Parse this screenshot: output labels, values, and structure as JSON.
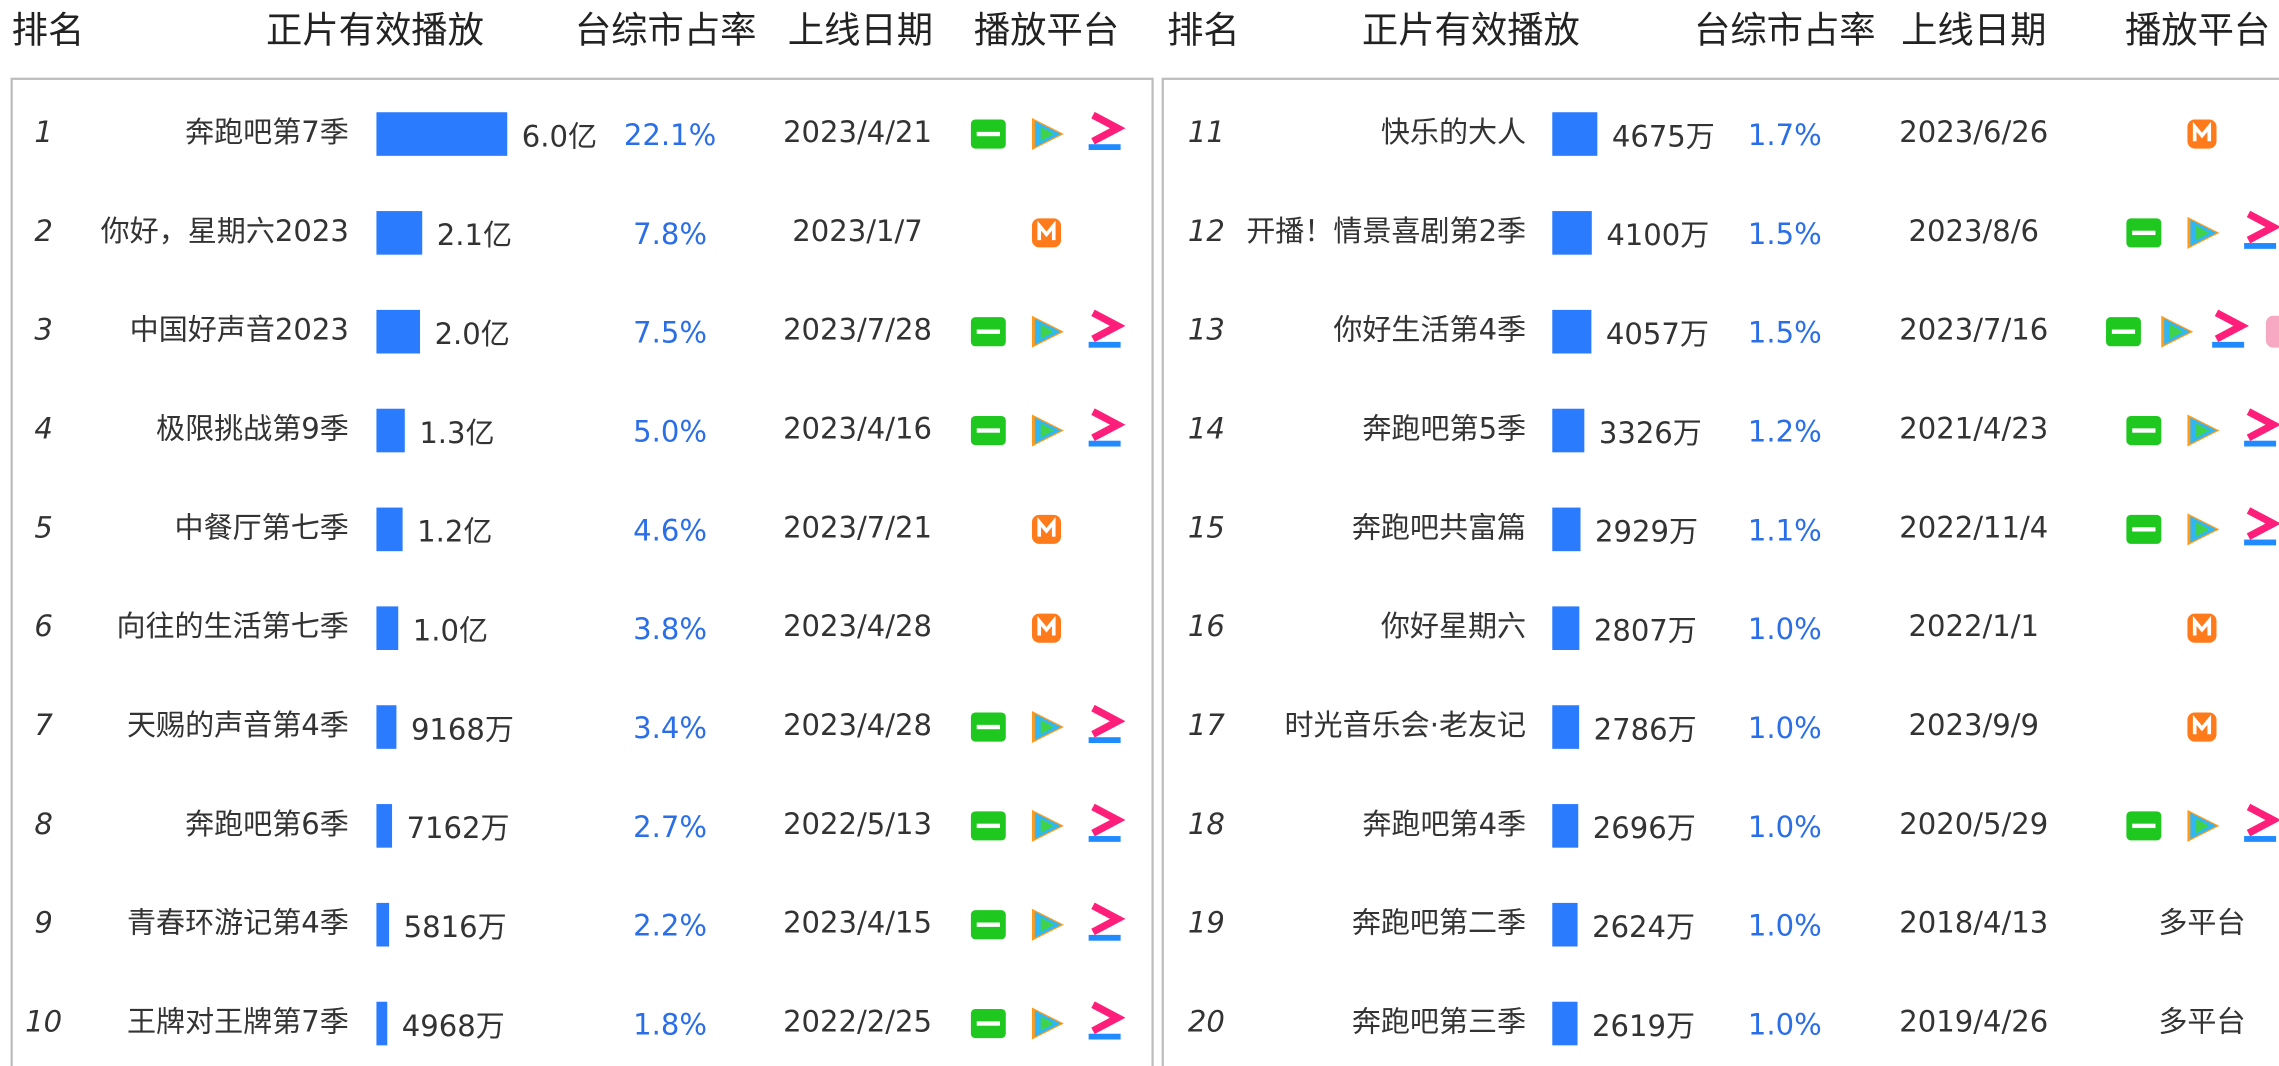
{
  "tables": [
    {
      "header": [
        "排名",
        "正片有效播放",
        "台综市占率",
        "上线日期",
        "播放平台"
      ],
      "rows": [
        {
          "rank": 1,
          "name": "奔跑吧第7季",
          "plays": {
            "value": 60000,
            "label": "6.0亿"
          },
          "share": "22.1%",
          "date": "2023/4/21",
          "platforms": [
            "iqiyi",
            "tencent",
            "youku"
          ]
        },
        {
          "rank": 2,
          "name": "你好，星期六2023",
          "plays": {
            "value": 21000,
            "label": "2.1亿"
          },
          "share": "7.8%",
          "date": "2023/1/7",
          "platforms": [
            "mango"
          ]
        },
        {
          "rank": 3,
          "name": "中国好声音2023",
          "plays": {
            "value": 20000,
            "label": "2.0亿"
          },
          "share": "7.5%",
          "date": "2023/7/28",
          "platforms": [
            "iqiyi",
            "tencent",
            "youku"
          ]
        },
        {
          "rank": 4,
          "name": "极限挑战第9季",
          "plays": {
            "value": 13000,
            "label": "1.3亿"
          },
          "share": "5.0%",
          "date": "2023/4/16",
          "platforms": [
            "iqiyi",
            "tencent",
            "youku"
          ]
        },
        {
          "rank": 5,
          "name": "中餐厅第七季",
          "plays": {
            "value": 12000,
            "label": "1.2亿"
          },
          "share": "4.6%",
          "date": "2023/7/21",
          "platforms": [
            "mango"
          ]
        },
        {
          "rank": 6,
          "name": "向往的生活第七季",
          "plays": {
            "value": 10000,
            "label": "1.0亿"
          },
          "share": "3.8%",
          "date": "2023/4/28",
          "platforms": [
            "mango"
          ]
        },
        {
          "rank": 7,
          "name": "天赐的声音第4季",
          "plays": {
            "value": 9168,
            "label": "9168万"
          },
          "share": "3.4%",
          "date": "2023/4/28",
          "platforms": [
            "iqiyi",
            "tencent",
            "youku"
          ]
        },
        {
          "rank": 8,
          "name": "奔跑吧第6季",
          "plays": {
            "value": 7162,
            "label": "7162万"
          },
          "share": "2.7%",
          "date": "2022/5/13",
          "platforms": [
            "iqiyi",
            "tencent",
            "youku"
          ]
        },
        {
          "rank": 9,
          "name": "青春环游记第4季",
          "plays": {
            "value": 5816,
            "label": "5816万"
          },
          "share": "2.2%",
          "date": "2023/4/15",
          "platforms": [
            "iqiyi",
            "tencent",
            "youku"
          ]
        },
        {
          "rank": 10,
          "name": "王牌对王牌第7季",
          "plays": {
            "value": 4968,
            "label": "4968万"
          },
          "share": "1.8%",
          "date": "2022/2/25",
          "platforms": [
            "iqiyi",
            "tencent",
            "youku"
          ]
        }
      ]
    },
    {
      "header": [
        "排名",
        "正片有效播放",
        "台综市占率",
        "上线日期",
        "播放平台"
      ],
      "rows": [
        {
          "rank": 11,
          "name": "快乐的大人",
          "plays": {
            "value": 4675,
            "label": "4675万"
          },
          "share": "1.7%",
          "date": "2023/6/26",
          "platforms": [
            "mango"
          ]
        },
        {
          "rank": 12,
          "name": "开播！情景喜剧第2季",
          "plays": {
            "value": 4100,
            "label": "4100万"
          },
          "share": "1.5%",
          "date": "2023/8/6",
          "platforms": [
            "iqiyi",
            "tencent",
            "youku"
          ]
        },
        {
          "rank": 13,
          "name": "你好生活第4季",
          "plays": {
            "value": 4057,
            "label": "4057万"
          },
          "share": "1.5%",
          "date": "2023/7/16",
          "platforms": [
            "iqiyi",
            "tencent",
            "youku",
            "other"
          ]
        },
        {
          "rank": 14,
          "name": "奔跑吧第5季",
          "plays": {
            "value": 3326,
            "label": "3326万"
          },
          "share": "1.2%",
          "date": "2021/4/23",
          "platforms": [
            "iqiyi",
            "tencent",
            "youku"
          ]
        },
        {
          "rank": 15,
          "name": "奔跑吧共富篇",
          "plays": {
            "value": 2929,
            "label": "2929万"
          },
          "share": "1.1%",
          "date": "2022/11/4",
          "platforms": [
            "iqiyi",
            "tencent",
            "youku"
          ]
        },
        {
          "rank": 16,
          "name": "你好星期六",
          "plays": {
            "value": 2807,
            "label": "2807万"
          },
          "share": "1.0%",
          "date": "2022/1/1",
          "platforms": [
            "mango"
          ]
        },
        {
          "rank": 17,
          "name": "时光音乐会·老友记",
          "plays": {
            "value": 2786,
            "label": "2786万"
          },
          "share": "1.0%",
          "date": "2023/9/9",
          "platforms": [
            "mango"
          ]
        },
        {
          "rank": 18,
          "name": "奔跑吧第4季",
          "plays": {
            "value": 2696,
            "label": "2696万"
          },
          "share": "1.0%",
          "date": "2020/5/29",
          "platforms": [
            "iqiyi",
            "tencent",
            "youku"
          ]
        },
        {
          "rank": 19,
          "name": "奔跑吧第二季",
          "plays": {
            "value": 2624,
            "label": "2624万"
          },
          "share": "1.0%",
          "date": "2018/4/13",
          "platform_text": "多平台"
        },
        {
          "rank": 20,
          "name": "奔跑吧第三季",
          "plays": {
            "value": 2619,
            "label": "2619万"
          },
          "share": "1.0%",
          "date": "2019/4/26",
          "platform_text": "多平台"
        }
      ]
    }
  ]
}
